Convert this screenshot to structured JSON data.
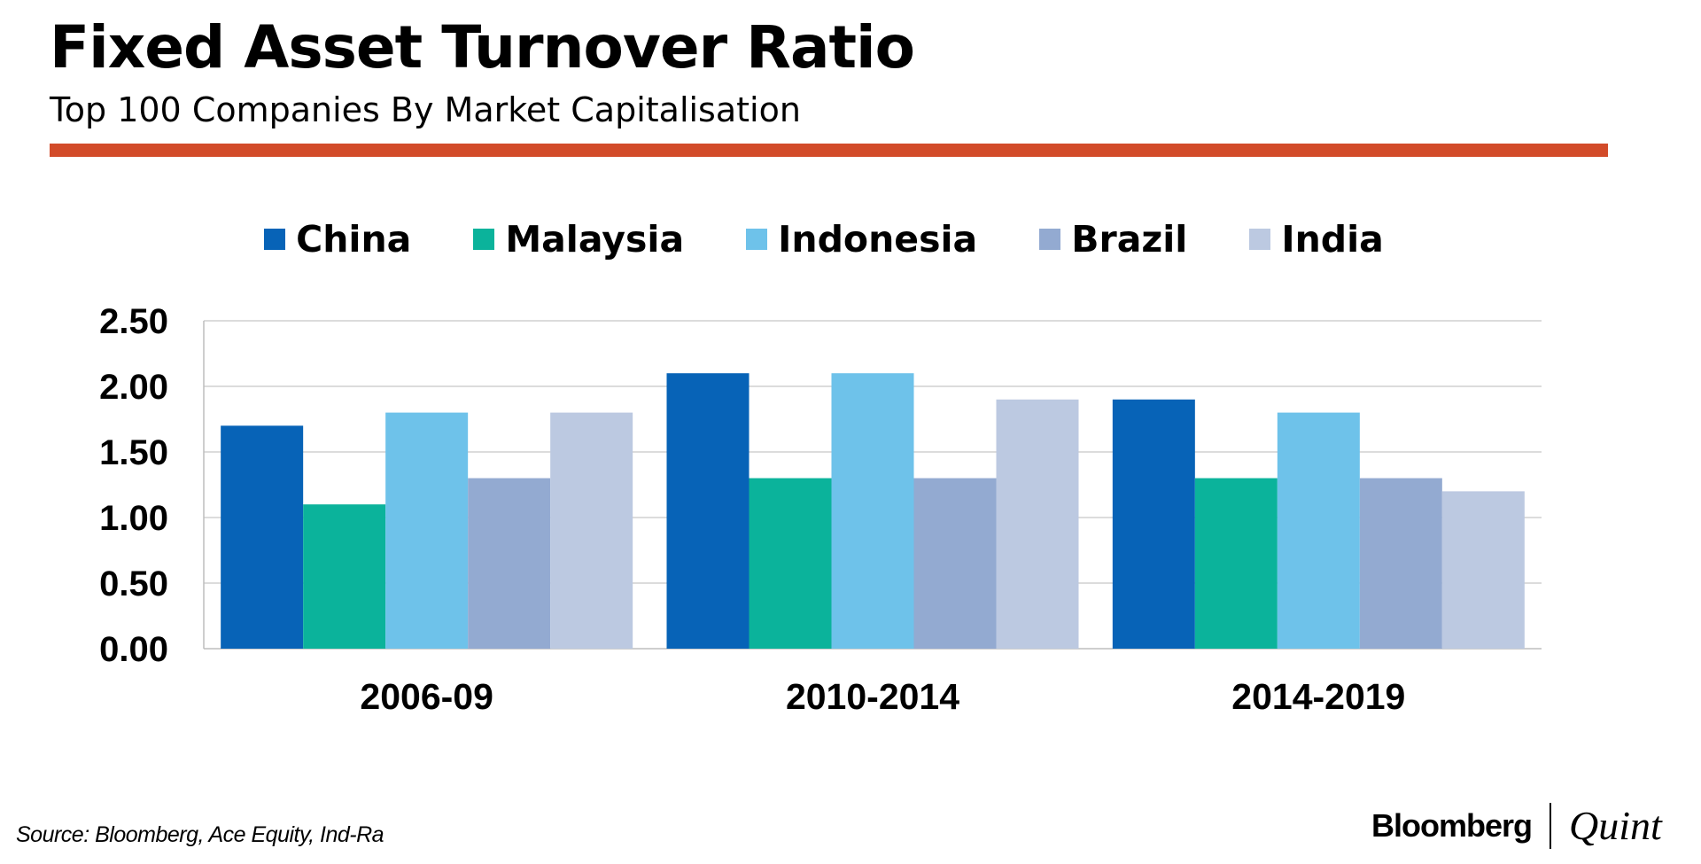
{
  "header": {
    "title": "Fixed Asset Turnover Ratio",
    "subtitle": "Top 100 Companies By Market Capitalisation",
    "rule_color": "#D24B29"
  },
  "chart_data": {
    "type": "bar",
    "title": "Fixed Asset Turnover Ratio",
    "subtitle": "Top 100 Companies By Market Capitalisation",
    "xlabel": "",
    "ylabel": "",
    "ylim": [
      0,
      2.5
    ],
    "yticks": [
      "0.00",
      "0.50",
      "1.00",
      "1.50",
      "2.00",
      "2.50"
    ],
    "ytick_values": [
      0,
      0.5,
      1,
      1.5,
      2,
      2.5
    ],
    "grid": true,
    "legend_position": "top-center",
    "categories": [
      "2006-09",
      "2010-2014",
      "2014-2019"
    ],
    "series": [
      {
        "name": "China",
        "color": "#0763B7",
        "values": [
          1.7,
          2.1,
          1.9
        ]
      },
      {
        "name": "Malaysia",
        "color": "#0BB39B",
        "values": [
          1.1,
          1.3,
          1.3
        ]
      },
      {
        "name": "Indonesia",
        "color": "#6EC2EA",
        "values": [
          1.8,
          2.1,
          1.8
        ]
      },
      {
        "name": "Brazil",
        "color": "#93AAD1",
        "values": [
          1.3,
          1.3,
          1.3
        ]
      },
      {
        "name": "India",
        "color": "#BCC9E1",
        "values": [
          1.8,
          1.9,
          1.2
        ]
      }
    ]
  },
  "footer": {
    "source": "Source: Bloomberg, Ace Equity, Ind-Ra",
    "brand_left": "Bloomberg",
    "brand_right": "Quint"
  }
}
